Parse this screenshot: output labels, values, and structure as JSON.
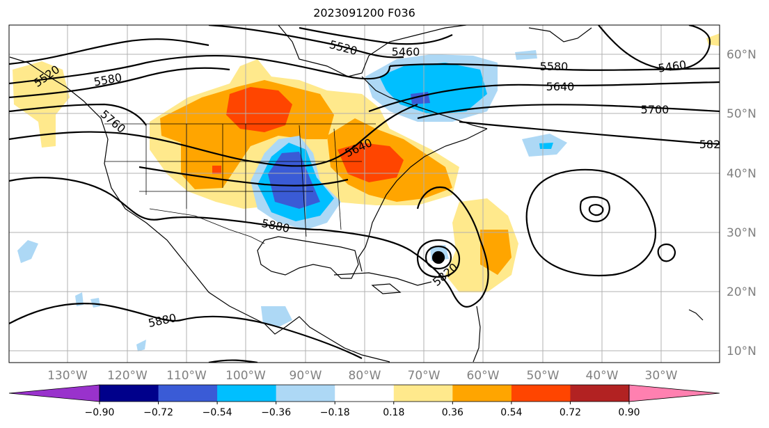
{
  "title": "2023091200 F036",
  "colors": {
    "grid": "#b0b0b0",
    "contour": "#000000",
    "coast": "#000000",
    "axis_label": "#808080"
  },
  "lat_labels": [
    "60°N",
    "50°N",
    "40°N",
    "30°N",
    "20°N",
    "10°N"
  ],
  "lon_labels": [
    "130°W",
    "120°W",
    "110°W",
    "100°W",
    "90°W",
    "80°W",
    "70°W",
    "60°W",
    "50°W",
    "40°W",
    "30°W"
  ],
  "colorbar": {
    "colors": [
      "#9932cc",
      "#00008b",
      "#3a5bd6",
      "#00bfff",
      "#add8f5",
      "#ffffff",
      "#ffe98c",
      "#ffa500",
      "#ff4500",
      "#b22222",
      "#ff80b0"
    ],
    "ticks": [
      "−0.90",
      "−0.72",
      "−0.54",
      "−0.36",
      "−0.18",
      "0.18",
      "0.36",
      "0.54",
      "0.72",
      "0.90"
    ]
  },
  "contour_labels": [
    "5520",
    "5580",
    "5760",
    "5520",
    "5460",
    "5580",
    "5640",
    "5700",
    "582",
    "5460",
    "5640",
    "5880",
    "5820",
    "5880"
  ]
}
